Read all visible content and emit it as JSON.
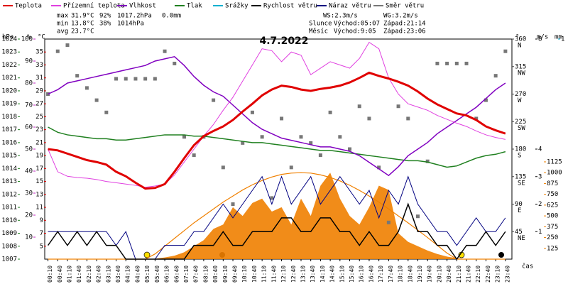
{
  "chart_data": {
    "type": "line",
    "title": "4.7.2022",
    "x_label": "čas",
    "categories": [
      "00:10",
      "00:40",
      "01:10",
      "01:40",
      "02:10",
      "02:40",
      "03:10",
      "03:40",
      "04:10",
      "04:40",
      "05:10",
      "05:40",
      "06:10",
      "06:40",
      "07:10",
      "07:40",
      "08:10",
      "08:40",
      "09:10",
      "09:40",
      "10:10",
      "10:40",
      "11:10",
      "11:40",
      "12:10",
      "12:40",
      "13:10",
      "13:40",
      "14:10",
      "14:40",
      "15:10",
      "15:40",
      "16:10",
      "16:40",
      "17:10",
      "17:40",
      "18:10",
      "18:40",
      "19:10",
      "19:40",
      "20:10",
      "20:40",
      "21:10",
      "21:40",
      "22:10",
      "22:40",
      "23:10",
      "23:40"
    ],
    "axes": {
      "pressure": {
        "label": "hPa",
        "color": "#208020",
        "ylim": [
          1007,
          1024
        ],
        "yticks": [
          1007,
          1008,
          1009,
          1010,
          1011,
          1012,
          1013,
          1014,
          1015,
          1016,
          1017,
          1018,
          1019,
          1020,
          1021,
          1022,
          1023,
          1024
        ]
      },
      "humidity": {
        "label": "%",
        "color": "#c020c0",
        "ylim": [
          0,
          100
        ],
        "yticks": [
          10,
          20,
          30,
          40,
          50,
          60,
          70,
          80,
          90,
          100
        ]
      },
      "temp": {
        "label": "°C",
        "color": "#e00000",
        "ylim": [
          3,
          37
        ],
        "yticks": [
          5,
          7,
          9,
          11,
          13,
          15,
          17,
          19,
          21,
          23,
          25,
          27,
          29,
          31,
          33,
          35
        ]
      },
      "direction": {
        "label": "°",
        "color": "#444444",
        "ylim": [
          0,
          360
        ],
        "yticks": [
          45,
          90,
          135,
          180,
          225,
          270,
          315,
          360
        ],
        "tick_names": [
          "NE",
          "E",
          "SE",
          "S",
          "SW",
          "W",
          "NW",
          "N"
        ]
      },
      "wind": {
        "label": "m/s",
        "color": "#000000",
        "ylim": [
          0,
          8
        ],
        "yticks": [
          1,
          2,
          3,
          4,
          8
        ]
      },
      "rain": {
        "label": "mm",
        "color": "#00a8d0",
        "ylim": [
          0,
          1
        ],
        "yticks": [
          1
        ]
      },
      "solar": {
        "color": "#f08000",
        "ylim": [
          0,
          2545
        ],
        "yticks": [
          125,
          250,
          375,
          500,
          625,
          750,
          875,
          1000,
          1125
        ]
      }
    },
    "series": [
      {
        "name": "Teplota",
        "color": "#e00000",
        "axis": "temp",
        "width": 3,
        "values": [
          20.0,
          19.8,
          19.3,
          18.8,
          18.3,
          18.0,
          17.6,
          16.5,
          15.8,
          14.8,
          13.9,
          14.0,
          14.6,
          16.5,
          18.6,
          20.6,
          22.0,
          22.8,
          23.5,
          24.5,
          25.8,
          27.0,
          28.3,
          29.2,
          29.8,
          29.6,
          29.2,
          29.0,
          29.3,
          29.5,
          29.8,
          30.3,
          31.0,
          31.8,
          31.3,
          30.9,
          30.4,
          29.8,
          28.9,
          27.8,
          26.9,
          26.2,
          25.5,
          25.2,
          24.5,
          23.5,
          22.9,
          22.4
        ]
      },
      {
        "name": "Přízemní teplota",
        "color": "#e040e0",
        "axis": "temp",
        "width": 1,
        "values": [
          20.0,
          16.5,
          15.8,
          15.6,
          15.5,
          15.3,
          15.0,
          14.8,
          14.6,
          14.4,
          14.1,
          14.3,
          14.6,
          16.0,
          18.0,
          20.0,
          22.0,
          23.8,
          26.0,
          28.0,
          30.5,
          33.0,
          35.5,
          35.2,
          33.5,
          35.0,
          34.5,
          31.5,
          32.5,
          33.5,
          33.0,
          32.5,
          34.0,
          36.5,
          35.5,
          31.0,
          28.5,
          27.0,
          26.5,
          26.0,
          25.2,
          24.6,
          24.0,
          23.5,
          22.8,
          22.2,
          21.8,
          21.5
        ]
      },
      {
        "name": "Vlhkost",
        "color": "#8000c0",
        "axis": "humidity",
        "width": 1.5,
        "values": [
          75,
          77,
          80,
          81,
          82,
          83,
          84,
          85,
          86,
          87,
          88,
          90,
          91,
          92,
          88,
          83,
          79,
          76,
          74,
          70,
          66,
          62,
          59,
          57,
          55,
          54,
          53,
          52,
          51,
          51,
          50,
          49,
          47,
          44,
          41,
          38,
          42,
          47,
          50,
          53,
          57,
          60,
          63,
          66,
          69,
          73,
          77,
          80
        ]
      },
      {
        "name": "Tlak",
        "color": "#208020",
        "axis": "pressure",
        "width": 1.5,
        "values": [
          1017.2,
          1016.8,
          1016.6,
          1016.5,
          1016.4,
          1016.3,
          1016.3,
          1016.2,
          1016.2,
          1016.3,
          1016.4,
          1016.5,
          1016.6,
          1016.6,
          1016.6,
          1016.5,
          1016.5,
          1016.4,
          1016.3,
          1016.2,
          1016.1,
          1016.0,
          1016.0,
          1015.9,
          1015.8,
          1015.7,
          1015.6,
          1015.5,
          1015.4,
          1015.4,
          1015.3,
          1015.2,
          1015.1,
          1015.0,
          1014.9,
          1014.8,
          1014.7,
          1014.6,
          1014.6,
          1014.5,
          1014.3,
          1014.1,
          1014.2,
          1014.5,
          1014.8,
          1015.0,
          1015.1,
          1015.3
        ]
      },
      {
        "name": "Srážky",
        "color": "#00b0d0",
        "axis": "rain",
        "width": 1
      },
      {
        "name": "Rychlost větru",
        "color": "#000000",
        "axis": "wind",
        "width": 1.5,
        "values": [
          0.5,
          1,
          0.5,
          1,
          0.5,
          1,
          0.5,
          0.5,
          0,
          0,
          0,
          0,
          0,
          0,
          0,
          0.5,
          0.5,
          0.5,
          1,
          0.5,
          0.5,
          1,
          1,
          1,
          1.5,
          1.5,
          1,
          1,
          1.5,
          1.5,
          1,
          1,
          0.5,
          1,
          0.5,
          0.5,
          1,
          2,
          1,
          1,
          0.5,
          0.5,
          0,
          0.5,
          0.5,
          1,
          0.5,
          1
        ]
      },
      {
        "name": "Náraz větru",
        "color": "#000080",
        "axis": "wind",
        "width": 1,
        "values": [
          1,
          1,
          1,
          1,
          1,
          1,
          1,
          0.5,
          1,
          0,
          0,
          0,
          0.5,
          0.5,
          0.5,
          1,
          1,
          1.5,
          2,
          1.5,
          2,
          2.5,
          3,
          2,
          3,
          2,
          2.5,
          3,
          2,
          2.5,
          3,
          2.5,
          2,
          2.5,
          1.5,
          2.5,
          2,
          3,
          2,
          1.5,
          1,
          1,
          0.5,
          1,
          1.5,
          1,
          1,
          1.5
        ]
      },
      {
        "name": "Směr větru",
        "color": "#777777",
        "axis": "direction",
        "marker": "square",
        "values": [
          270,
          340,
          350,
          300,
          280,
          260,
          240,
          295,
          295,
          295,
          295,
          295,
          340,
          320,
          200,
          170,
          200,
          260,
          150,
          90,
          190,
          240,
          200,
          100,
          230,
          150,
          200,
          190,
          170,
          240,
          200,
          180,
          250,
          230,
          150,
          60,
          250,
          230,
          70,
          160,
          320,
          320,
          320,
          320,
          230,
          260,
          300,
          340
        ]
      }
    ],
    "solar": {
      "color": "#f08000",
      "values": [
        0,
        0,
        0,
        0,
        0,
        0,
        0,
        0,
        0,
        0,
        0,
        5,
        20,
        40,
        80,
        150,
        220,
        350,
        400,
        600,
        500,
        650,
        700,
        550,
        600,
        400,
        700,
        500,
        850,
        1000,
        700,
        500,
        400,
        600,
        850,
        800,
        300,
        200,
        150,
        100,
        60,
        30,
        10,
        0,
        0,
        0,
        0,
        0
      ]
    },
    "solar_max": {
      "color": "#f08000",
      "values": [
        0,
        0,
        0,
        0,
        0,
        0,
        0,
        0,
        0,
        0,
        0,
        60,
        150,
        240,
        330,
        420,
        500,
        580,
        660,
        730,
        800,
        860,
        910,
        950,
        980,
        995,
        1000,
        995,
        975,
        945,
        905,
        855,
        795,
        730,
        660,
        580,
        500,
        420,
        335,
        250,
        160,
        70,
        0,
        0,
        0,
        0,
        0,
        0
      ]
    },
    "stats": [
      {
        "label": "max",
        "temp": "31.9°C",
        "humidity": "92%",
        "pressure": "1017.2hPa",
        "rain": "0.0mm"
      },
      {
        "label": "min",
        "temp": "13.8°C",
        "humidity": "38%",
        "pressure": "1014hPa"
      },
      {
        "label": "avg",
        "temp": "23.7°C"
      }
    ],
    "wind_stats": [
      "WS:2.3m/s",
      "WG:3.2m/s"
    ],
    "sun": [
      "Slunce",
      "Východ:05:07",
      "Západ:21:14"
    ],
    "moon": [
      "Měsíc",
      "Východ:9:05",
      "Západ:23:06"
    ]
  }
}
